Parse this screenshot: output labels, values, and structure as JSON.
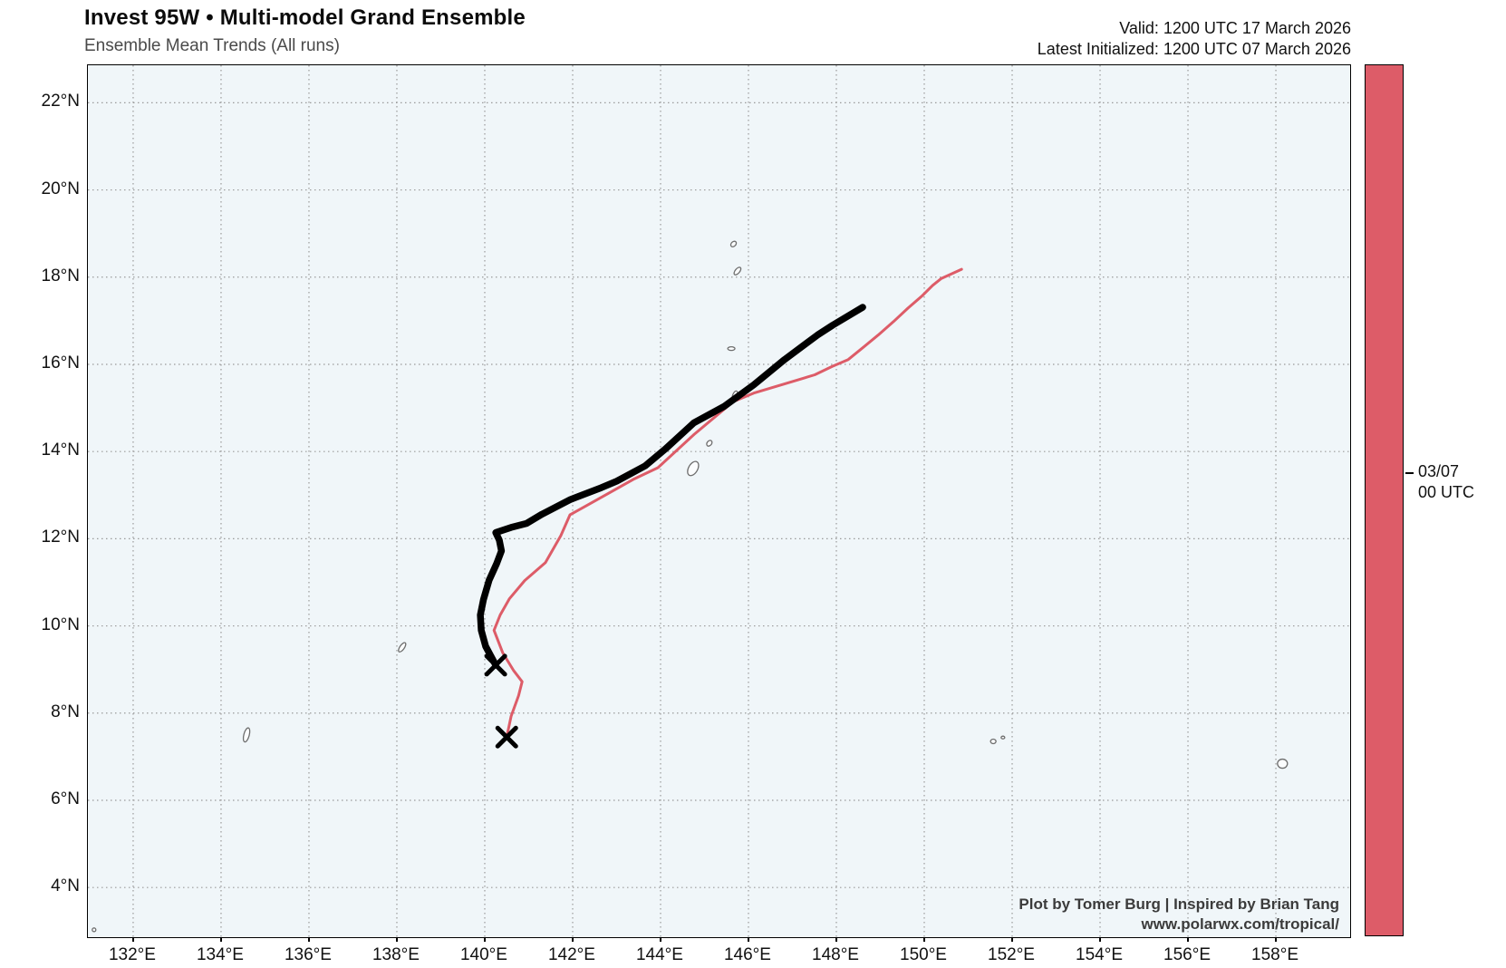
{
  "header": {
    "title": "Invest 95W • Multi-model Grand Ensemble",
    "subtitle": "Ensemble Mean Trends (All runs)",
    "valid": "Valid: 1200 UTC 17 March 2026",
    "initialized": "Latest Initialized: 1200 UTC 07 March 2026"
  },
  "credits": {
    "line1": "Plot by Tomer Burg | Inspired by Brian Tang",
    "line2": "www.polarwx.com/tropical/"
  },
  "colorbar": {
    "color": "#DD5C68",
    "border_color": "#000000",
    "tick_label_line1": "03/07",
    "tick_label_line2": "00 UTC",
    "tick_position_frac": 0.468
  },
  "chart_data": {
    "type": "line",
    "title": "Invest 95W • Multi-model Grand Ensemble",
    "subtitle": "Ensemble Mean Trends (All runs)",
    "projection": "lat-lon map, Western Pacific",
    "grid": "dotted",
    "background_color": "#F0F6F9",
    "gridline_color": "#9a9a9a",
    "x_axis": {
      "label_suffix": "°E",
      "ticks": [
        132,
        134,
        136,
        138,
        140,
        142,
        144,
        146,
        148,
        150,
        152,
        154,
        156,
        158
      ],
      "range": [
        130.97,
        159.69
      ]
    },
    "y_axis": {
      "label_suffix": "°N",
      "ticks": [
        4,
        6,
        8,
        10,
        12,
        14,
        16,
        18,
        20,
        22
      ],
      "range": [
        2.86,
        22.86
      ]
    },
    "series": [
      {
        "name": "ensemble-mean-run-0307-00utc",
        "color": "#DD5C68",
        "width": 3,
        "start_marker": "x",
        "marker_color": "#000000",
        "points": [
          [
            140.5,
            7.45
          ],
          [
            140.6,
            7.93
          ],
          [
            140.77,
            8.4
          ],
          [
            140.85,
            8.72
          ],
          [
            140.66,
            8.97
          ],
          [
            140.41,
            9.38
          ],
          [
            140.21,
            9.9
          ],
          [
            140.35,
            10.25
          ],
          [
            140.56,
            10.62
          ],
          [
            140.91,
            11.04
          ],
          [
            141.38,
            11.45
          ],
          [
            141.73,
            12.07
          ],
          [
            141.94,
            12.55
          ],
          [
            142.21,
            12.7
          ],
          [
            142.76,
            13.01
          ],
          [
            143.38,
            13.36
          ],
          [
            143.94,
            13.63
          ],
          [
            144.76,
            14.39
          ],
          [
            145.65,
            15.14
          ],
          [
            146.12,
            15.34
          ],
          [
            146.82,
            15.55
          ],
          [
            147.51,
            15.76
          ],
          [
            147.9,
            15.95
          ],
          [
            148.27,
            16.11
          ],
          [
            148.6,
            16.38
          ],
          [
            148.95,
            16.67
          ],
          [
            149.3,
            16.98
          ],
          [
            149.63,
            17.29
          ],
          [
            149.94,
            17.56
          ],
          [
            150.19,
            17.81
          ],
          [
            150.39,
            17.97
          ],
          [
            150.85,
            18.18
          ]
        ]
      },
      {
        "name": "ensemble-mean-latest-run",
        "color": "#000000",
        "width": 7.5,
        "start_marker": "x",
        "marker_color": "#000000",
        "points": [
          [
            140.25,
            9.1
          ],
          [
            140.02,
            9.53
          ],
          [
            139.92,
            9.9
          ],
          [
            139.9,
            10.25
          ],
          [
            139.97,
            10.6
          ],
          [
            140.1,
            11.05
          ],
          [
            140.27,
            11.43
          ],
          [
            140.38,
            11.72
          ],
          [
            140.33,
            11.97
          ],
          [
            140.25,
            12.14
          ],
          [
            140.6,
            12.26
          ],
          [
            140.95,
            12.35
          ],
          [
            141.3,
            12.56
          ],
          [
            141.95,
            12.9
          ],
          [
            142.65,
            13.17
          ],
          [
            143.0,
            13.32
          ],
          [
            143.65,
            13.67
          ],
          [
            144.1,
            14.05
          ],
          [
            144.76,
            14.66
          ],
          [
            145.44,
            15.03
          ],
          [
            146.12,
            15.53
          ],
          [
            146.82,
            16.11
          ],
          [
            147.57,
            16.67
          ],
          [
            147.92,
            16.9
          ],
          [
            148.6,
            17.31
          ]
        ]
      }
    ],
    "islands": [
      {
        "name": "palau",
        "lon": 134.58,
        "lat": 7.5,
        "w": 6,
        "h": 16,
        "rot": 15
      },
      {
        "name": "yap",
        "lon": 138.12,
        "lat": 9.51,
        "w": 5,
        "h": 12,
        "rot": 35
      },
      {
        "name": "guam",
        "lon": 144.74,
        "lat": 13.61,
        "w": 10,
        "h": 17,
        "rot": 30
      },
      {
        "name": "rota",
        "lon": 145.11,
        "lat": 14.19,
        "w": 5,
        "h": 7,
        "rot": 40
      },
      {
        "name": "saipan-tinian",
        "lon": 145.69,
        "lat": 15.28,
        "w": 5,
        "h": 11,
        "rot": 20
      },
      {
        "name": "anatahan",
        "lon": 145.61,
        "lat": 16.36,
        "w": 8,
        "h": 4,
        "rot": 0
      },
      {
        "name": "pagan",
        "lon": 145.75,
        "lat": 18.14,
        "w": 5,
        "h": 10,
        "rot": 40
      },
      {
        "name": "agrihan",
        "lon": 145.66,
        "lat": 18.76,
        "w": 5,
        "h": 7,
        "rot": 45
      },
      {
        "name": "chuuk-west",
        "lon": 151.57,
        "lat": 7.35,
        "w": 6,
        "h": 5,
        "rot": 0
      },
      {
        "name": "chuuk-east",
        "lon": 151.79,
        "lat": 7.44,
        "w": 4,
        "h": 3,
        "rot": 0
      },
      {
        "name": "pohnpei",
        "lon": 158.15,
        "lat": 6.84,
        "w": 11,
        "h": 10,
        "rot": 0
      },
      {
        "name": "islet-southwest",
        "lon": 131.11,
        "lat": 3.03,
        "w": 4,
        "h": 4,
        "rot": 0
      }
    ]
  }
}
